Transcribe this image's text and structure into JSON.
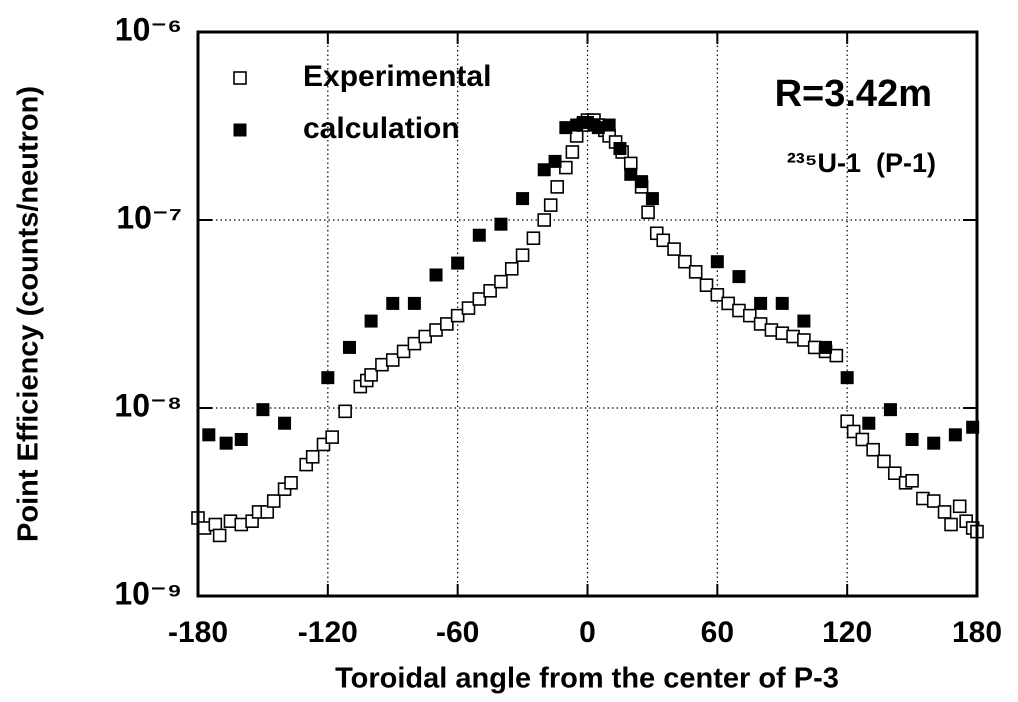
{
  "chart_data": {
    "type": "scatter",
    "x_label": "Toroidal angle from the center of P-3",
    "y_label": "Point Efficiency (counts/neutron)",
    "annotations": [
      "R=3.42m",
      "²³⁵U-1  (P-1)"
    ],
    "xlim": [
      -180,
      180
    ],
    "xticks": [
      -180,
      -120,
      -60,
      0,
      60,
      120,
      180
    ],
    "ylim": [
      1e-09,
      1e-06
    ],
    "yscale": "log",
    "yticks": [
      {
        "value": 1e-09,
        "label": "10⁻⁹"
      },
      {
        "value": 1e-08,
        "label": "10⁻⁸"
      },
      {
        "value": 1e-07,
        "label": "10⁻⁷"
      },
      {
        "value": 1e-06,
        "label": "10⁻⁶"
      }
    ],
    "grid": true,
    "legend": "top-left",
    "series": [
      {
        "name": "Experimental",
        "marker": "open-square",
        "color": "#000000",
        "x": [
          -180,
          -177,
          -172,
          -170,
          -165,
          -160,
          -155,
          -152,
          -148,
          -145,
          -140,
          -137,
          -130,
          -127,
          -122,
          -118,
          -112,
          -105,
          -102,
          -100,
          -95,
          -90,
          -85,
          -80,
          -75,
          -70,
          -65,
          -60,
          -55,
          -50,
          -45,
          -40,
          -35,
          -30,
          -25,
          -20,
          -17,
          -14,
          -10,
          -7,
          -5,
          -2,
          0,
          3,
          5,
          8,
          10,
          13,
          16,
          20,
          25,
          28,
          32,
          35,
          40,
          45,
          50,
          55,
          60,
          65,
          70,
          75,
          80,
          85,
          90,
          95,
          100,
          105,
          110,
          115,
          120,
          123,
          127,
          132,
          137,
          142,
          147,
          150,
          155,
          160,
          165,
          168,
          172,
          175,
          178,
          180
        ],
        "values": [
          2.6e-09,
          2.3e-09,
          2.4e-09,
          2.1e-09,
          2.5e-09,
          2.4e-09,
          2.5e-09,
          2.8e-09,
          2.8e-09,
          3.2e-09,
          3.7e-09,
          4e-09,
          5e-09,
          5.5e-09,
          6.4e-09,
          7e-09,
          9.6e-09,
          1.3e-08,
          1.4e-08,
          1.5e-08,
          1.7e-08,
          1.8e-08,
          2e-08,
          2.2e-08,
          2.4e-08,
          2.6e-08,
          2.8e-08,
          3.1e-08,
          3.4e-08,
          3.8e-08,
          4.2e-08,
          4.7e-08,
          5.5e-08,
          6.5e-08,
          8e-08,
          1e-07,
          1.2e-07,
          1.5e-07,
          1.9e-07,
          2.3e-07,
          2.8e-07,
          3.2e-07,
          3.4e-07,
          3.4e-07,
          3.2e-07,
          3e-07,
          2.8e-07,
          2.6e-07,
          2.3e-07,
          2e-07,
          1.5e-07,
          1.1e-07,
          8.5e-08,
          7.8e-08,
          7e-08,
          6e-08,
          5.3e-08,
          4.5e-08,
          4e-08,
          3.6e-08,
          3.3e-08,
          3.1e-08,
          2.8e-08,
          2.6e-08,
          2.5e-08,
          2.4e-08,
          2.3e-08,
          2.1e-08,
          2e-08,
          1.9e-08,
          8.5e-09,
          7.5e-09,
          6.8e-09,
          6e-09,
          5.2e-09,
          4.5e-09,
          4e-09,
          4.1e-09,
          3.3e-09,
          3.2e-09,
          2.8e-09,
          2.4e-09,
          3e-09,
          2.5e-09,
          2.3e-09,
          2.2e-09
        ]
      },
      {
        "name": "calculation",
        "marker": "filled-square",
        "color": "#000000",
        "x": [
          -175,
          -167,
          -160,
          -150,
          -140,
          -120,
          -110,
          -100,
          -90,
          -80,
          -70,
          -60,
          -50,
          -40,
          -30,
          -20,
          -15,
          -10,
          -5,
          -2,
          0,
          3,
          5,
          10,
          15,
          20,
          25,
          30,
          60,
          70,
          80,
          90,
          100,
          110,
          120,
          130,
          140,
          150,
          160,
          170,
          178
        ],
        "values": [
          7.2e-09,
          6.5e-09,
          6.8e-09,
          9.8e-09,
          8.3e-09,
          1.45e-08,
          2.1e-08,
          2.9e-08,
          3.6e-08,
          3.6e-08,
          5.1e-08,
          5.9e-08,
          8.3e-08,
          9.5e-08,
          1.3e-07,
          1.85e-07,
          2.05e-07,
          3.1e-07,
          3.2e-07,
          3.3e-07,
          3.3e-07,
          3.2e-07,
          3.1e-07,
          3.2e-07,
          2.4e-07,
          1.75e-07,
          1.6e-07,
          1.3e-07,
          6e-08,
          5e-08,
          3.6e-08,
          3.6e-08,
          2.9e-08,
          2.1e-08,
          1.45e-08,
          8.3e-09,
          9.8e-09,
          6.8e-09,
          6.5e-09,
          7.2e-09,
          7.9e-09
        ]
      }
    ]
  }
}
